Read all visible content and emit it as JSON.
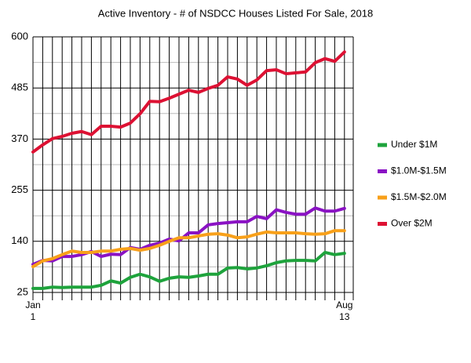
{
  "chart_data": {
    "type": "line",
    "title": "Active Inventory - # of NSDCC Houses Listed For Sale, 2018",
    "categories": [
      "Jan 1",
      null,
      null,
      null,
      null,
      null,
      null,
      null,
      null,
      null,
      null,
      null,
      null,
      null,
      null,
      null,
      null,
      null,
      null,
      null,
      null,
      null,
      null,
      null,
      null,
      null,
      null,
      null,
      null,
      null,
      null,
      null,
      "Aug 13"
    ],
    "series": [
      {
        "name": "Under $1M",
        "color": "#1ea33c",
        "values": [
          34,
          34,
          37,
          36,
          37,
          37,
          37,
          41,
          51,
          46,
          59,
          66,
          60,
          50,
          57,
          60,
          59,
          62,
          66,
          66,
          80,
          81,
          78,
          80,
          85,
          92,
          96,
          97,
          97,
          96,
          115,
          110,
          113
        ]
      },
      {
        "name": "$1.0M-$1.5M",
        "color": "#8a12c4",
        "values": [
          88,
          97,
          96,
          106,
          106,
          110,
          117,
          106,
          111,
          110,
          126,
          122,
          131,
          136,
          145,
          141,
          159,
          159,
          177,
          180,
          182,
          184,
          184,
          196,
          191,
          211,
          205,
          201,
          201,
          215,
          208,
          208,
          214
        ]
      },
      {
        "name": "$1.5M-$2.0M",
        "color": "#f8a019",
        "values": [
          83,
          96,
          101,
          110,
          118,
          115,
          115,
          118,
          118,
          122,
          124,
          120,
          124,
          131,
          140,
          148,
          148,
          152,
          156,
          157,
          154,
          148,
          150,
          156,
          161,
          159,
          159,
          159,
          157,
          156,
          157,
          164,
          164
        ]
      },
      {
        "name": "Over $2M",
        "color": "#dd1133",
        "values": [
          341,
          357,
          371,
          376,
          383,
          387,
          380,
          399,
          399,
          397,
          406,
          427,
          455,
          454,
          462,
          471,
          480,
          475,
          484,
          491,
          510,
          505,
          491,
          503,
          524,
          526,
          517,
          519,
          521,
          542,
          551,
          545,
          566
        ]
      }
    ],
    "ylim": [
      25,
      600
    ],
    "yticks": [
      25,
      140,
      255,
      370,
      485,
      600
    ],
    "grid": true,
    "minor_grid": true,
    "legend": "right"
  }
}
